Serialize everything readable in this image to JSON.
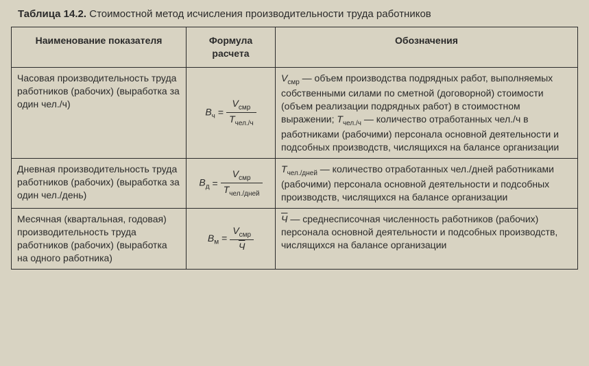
{
  "caption_prefix": "Таблица 14.2.",
  "caption_text": "Стоимостной метод исчисления производительности труда работников",
  "headers": {
    "name": "Наименование показателя",
    "formula": "Формула расчета",
    "notation": "Обозначения"
  },
  "rows": [
    {
      "name": "Часовая производительность труда работников (рабочих) (выработка за один чел./ч)",
      "formula": {
        "lhs": "В",
        "lhs_sub": "ч",
        "num": "V",
        "num_sub": "смр",
        "den": "T",
        "den_sub": "чел./ч"
      },
      "notation_html": "<span class='sym'>V</span><span class='sub'>смр</span> — объем производства подрядных работ, выполняемых собственными силами по сметной (договорной) стоимости (объем реализации подрядных работ) в стоимостном выражении; <span class='sym'>T</span><span class='sub'>чел./ч</span> — количество отработанных чел./ч в работниками (рабочими) персонала основной деятельности и подсобных производств, числящихся на балансе организации"
    },
    {
      "name": "Дневная производительность труда работников (рабочих) (выработка за один чел./день)",
      "formula": {
        "lhs": "В",
        "lhs_sub": "д",
        "num": "V",
        "num_sub": "смр",
        "den": "T",
        "den_sub": "чел./дней"
      },
      "notation_html": "<span class='sym'>T</span><span class='sub'>чел./дней</span> — количество отработанных чел./дней работниками (рабочими) персонала основной деятельности и подсобных производств, числящихся на балансе организации"
    },
    {
      "name": "Месячная (квартальная, годовая) производительность труда работников (рабочих) (выработка на одного работника)",
      "formula": {
        "lhs": "В",
        "lhs_sub": "м",
        "num": "V",
        "num_sub": "смр",
        "den_bar": "Ч"
      },
      "notation_html": "<span class='bar'>Ч</span> — среднесписочная численность работников (рабочих) персонала основной деятельности и подсобных производств, числящихся на балансе организации"
    }
  ]
}
